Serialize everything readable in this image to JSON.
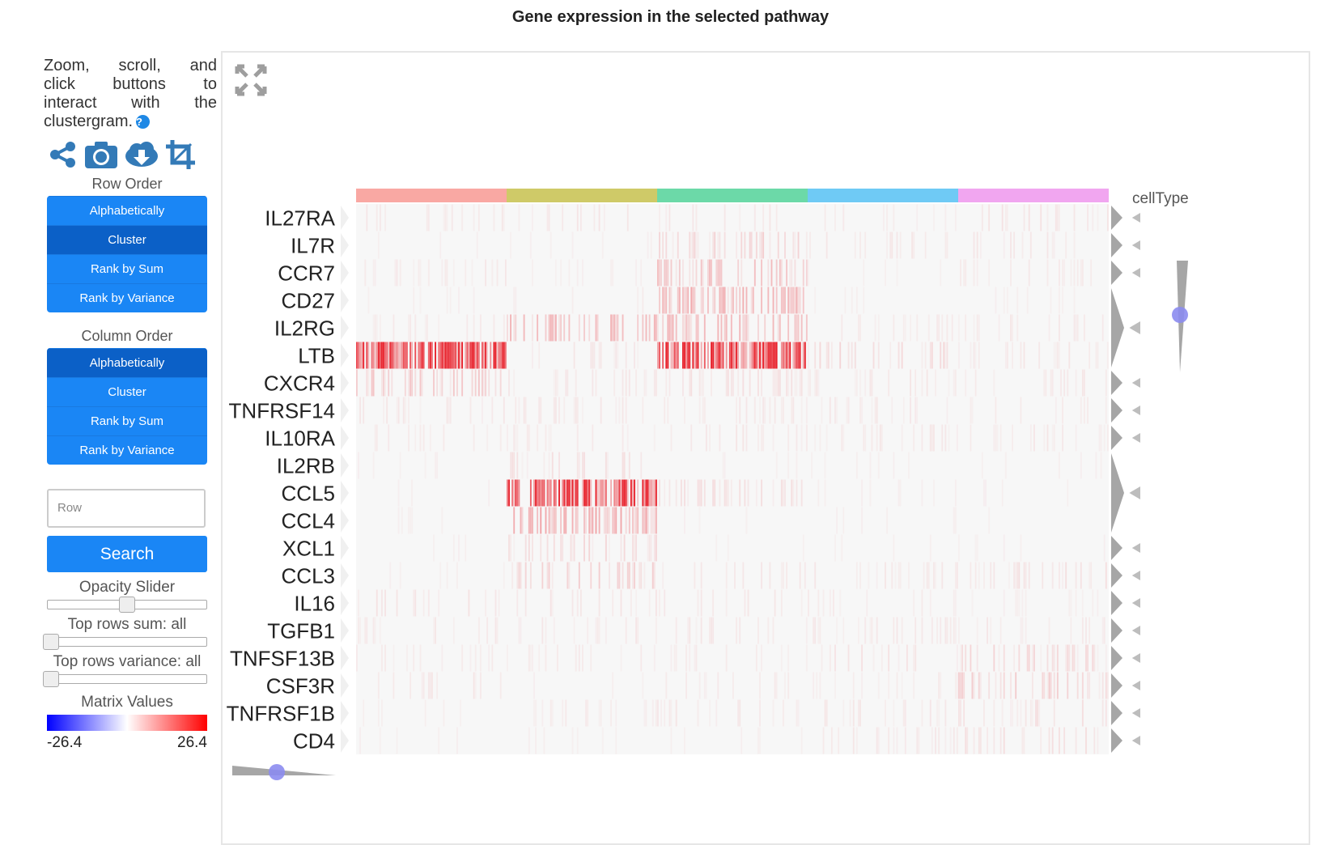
{
  "title": "Gene expression in the selected pathway",
  "help": {
    "line1": "Zoom, scroll, and",
    "line2": "click buttons to",
    "line3": "interact with the",
    "line4": "clustergram.",
    "qmark": "?"
  },
  "toolbar": {
    "icons": [
      "share-icon",
      "camera-icon",
      "download-icon",
      "crop-icon"
    ]
  },
  "row_order": {
    "label": "Row Order",
    "buttons": [
      "Alphabetically",
      "Cluster",
      "Rank by Sum",
      "Rank by Variance"
    ],
    "active": "Cluster"
  },
  "column_order": {
    "label": "Column Order",
    "buttons": [
      "Alphabetically",
      "Cluster",
      "Rank by Sum",
      "Rank by Variance"
    ],
    "active": "Alphabetically"
  },
  "search": {
    "placeholder": "Row",
    "button": "Search"
  },
  "sliders": {
    "opacity": {
      "label": "Opacity Slider",
      "value": 0.5
    },
    "top_rows_sum": {
      "label": "Top rows sum: all",
      "value": 0
    },
    "top_rows_variance": {
      "label": "Top rows variance: all",
      "value": 0
    }
  },
  "matrix_values": {
    "label": "Matrix Values",
    "min": "-26.4",
    "max": "26.4",
    "colors": [
      "#0000ff",
      "#ffffff",
      "#ff0000"
    ]
  },
  "colors": {
    "accent": "#1a86f5",
    "accent_active": "#0b60c7",
    "heat": "#e8202a",
    "cell_bg": "#f7f7f7",
    "handle": "#8c8cf0",
    "tri": "#a6a6a6",
    "celltype": [
      "#f9a8a3",
      "#cfca68",
      "#6cd9a8",
      "#6fcaf5",
      "#f1a6f0"
    ]
  },
  "chart_data": {
    "type": "heatmap",
    "rows": [
      "IL27RA",
      "IL7R",
      "CCR7",
      "CD27",
      "IL2RG",
      "LTB",
      "CXCR4",
      "TNFRSF14",
      "IL10RA",
      "IL2RB",
      "CCL5",
      "CCL4",
      "XCL1",
      "CCL3",
      "IL16",
      "TGFB1",
      "TNFSF13B",
      "CSF3R",
      "TNFRSF1B",
      "CD4"
    ],
    "column_category_label": "cellType",
    "column_groups": 5,
    "columns_per_group": 90,
    "intensity": [
      [
        0.1,
        0.12,
        0.1,
        0.08,
        0.12
      ],
      [
        0.05,
        0.05,
        0.25,
        0.1,
        0.1
      ],
      [
        0.1,
        0.05,
        0.35,
        0.05,
        0.08
      ],
      [
        0.05,
        0.08,
        0.45,
        0.05,
        0.05
      ],
      [
        0.08,
        0.4,
        0.4,
        0.08,
        0.1
      ],
      [
        0.9,
        0.1,
        0.9,
        0.2,
        0.1
      ],
      [
        0.3,
        0.1,
        0.15,
        0.1,
        0.1
      ],
      [
        0.1,
        0.1,
        0.1,
        0.1,
        0.08
      ],
      [
        0.08,
        0.08,
        0.1,
        0.1,
        0.1
      ],
      [
        0.05,
        0.15,
        0.05,
        0.05,
        0.05
      ],
      [
        0.05,
        0.9,
        0.15,
        0.05,
        0.05
      ],
      [
        0.05,
        0.5,
        0.05,
        0.05,
        0.05
      ],
      [
        0.05,
        0.2,
        0.05,
        0.05,
        0.05
      ],
      [
        0.05,
        0.25,
        0.1,
        0.1,
        0.15
      ],
      [
        0.12,
        0.12,
        0.1,
        0.08,
        0.05
      ],
      [
        0.1,
        0.1,
        0.1,
        0.1,
        0.1
      ],
      [
        0.08,
        0.08,
        0.08,
        0.12,
        0.2
      ],
      [
        0.1,
        0.05,
        0.08,
        0.08,
        0.25
      ],
      [
        0.05,
        0.08,
        0.1,
        0.1,
        0.15
      ],
      [
        0.05,
        0.05,
        0.05,
        0.1,
        0.15
      ]
    ],
    "row_dendrogram_groups": [
      [
        0,
        0
      ],
      [
        1,
        1
      ],
      [
        2,
        2
      ],
      [
        3,
        5
      ],
      [
        6,
        6
      ],
      [
        7,
        7
      ],
      [
        8,
        8
      ],
      [
        9,
        11
      ],
      [
        12,
        12
      ],
      [
        13,
        13
      ],
      [
        14,
        14
      ],
      [
        15,
        15
      ],
      [
        16,
        16
      ],
      [
        17,
        17
      ],
      [
        18,
        18
      ],
      [
        19,
        19
      ]
    ],
    "zoom": {
      "x": 0.5,
      "y": 0.5
    }
  }
}
